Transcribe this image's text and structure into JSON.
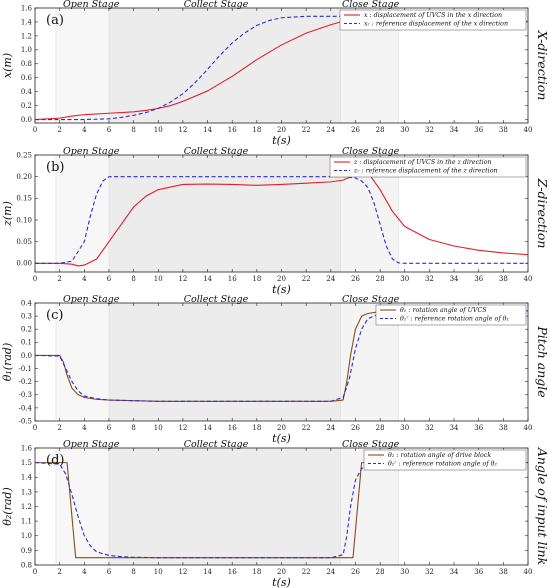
{
  "chart_data": [
    {
      "type": "line",
      "panel_label": "(a)",
      "side_label": "X-direction",
      "stages": [
        "Open Stage",
        "Collect Stage",
        "Close Stage"
      ],
      "xlabel": "t(s)",
      "ylabel": "x(m)",
      "xlim": [
        0,
        40
      ],
      "ylim": [
        -0.05,
        1.6
      ],
      "xticks": [
        "0",
        "2",
        "4",
        "6",
        "8",
        "10",
        "12",
        "14",
        "16",
        "18",
        "20",
        "22",
        "24",
        "26",
        "28",
        "30",
        "32",
        "34",
        "36",
        "38",
        "40"
      ],
      "yticks": [
        "0.0",
        "0.2",
        "0.4",
        "0.6",
        "0.8",
        "1.0",
        "1.2",
        "1.4",
        "1.6"
      ],
      "legend_position": "top-right",
      "series": [
        {
          "name": "x : displacement of UVCS in the x direction",
          "color": "#e0202a",
          "dash": "solid",
          "x": [
            0,
            2,
            3,
            4,
            6,
            8,
            9,
            10,
            11,
            12,
            14,
            16,
            18,
            20,
            22,
            24,
            25,
            25.5,
            26,
            27,
            28,
            30,
            32,
            34,
            36,
            38,
            40
          ],
          "y": [
            0,
            0.02,
            0.05,
            0.07,
            0.09,
            0.11,
            0.13,
            0.16,
            0.2,
            0.26,
            0.41,
            0.62,
            0.86,
            1.07,
            1.24,
            1.36,
            1.41,
            1.44,
            1.43,
            1.42,
            1.4,
            1.39,
            1.4,
            1.41,
            1.41,
            1.41,
            1.41
          ]
        },
        {
          "name": "xᵣ : reference displacement of the x direction",
          "color": "#2b2bd6",
          "dash": "dashed",
          "x": [
            0,
            2,
            4,
            6,
            7,
            8,
            9,
            10,
            11,
            12,
            13,
            14,
            15,
            16,
            17,
            18,
            19,
            20,
            22,
            24,
            26,
            30,
            34,
            40
          ],
          "y": [
            0,
            0,
            0,
            0.01,
            0.03,
            0.06,
            0.1,
            0.16,
            0.25,
            0.37,
            0.53,
            0.72,
            0.92,
            1.1,
            1.24,
            1.35,
            1.42,
            1.46,
            1.48,
            1.48,
            1.48,
            1.48,
            1.48,
            1.48
          ]
        }
      ]
    },
    {
      "type": "line",
      "panel_label": "(b)",
      "side_label": "Z-direction",
      "stages": [
        "Open Stage",
        "Collect Stage",
        "Close Stage"
      ],
      "xlabel": "t(s)",
      "ylabel": "z(m)",
      "xlim": [
        0,
        40
      ],
      "ylim": [
        -0.02,
        0.25
      ],
      "xticks": [
        "0",
        "2",
        "4",
        "6",
        "8",
        "10",
        "12",
        "14",
        "16",
        "18",
        "20",
        "22",
        "24",
        "26",
        "28",
        "30",
        "32",
        "34",
        "36",
        "38",
        "40"
      ],
      "yticks": [
        "0.00",
        "0.05",
        "0.10",
        "0.15",
        "0.20",
        "0.25"
      ],
      "legend_position": "top-right",
      "series": [
        {
          "name": "z : displacement of UVCS in the z direction",
          "color": "#e0202a",
          "dash": "solid",
          "x": [
            0,
            2,
            3,
            3.5,
            4,
            5,
            6,
            7,
            8,
            9,
            10,
            12,
            14,
            16,
            18,
            20,
            22,
            24,
            25,
            26,
            26.5,
            27,
            28,
            29,
            30,
            32,
            34,
            36,
            38,
            40
          ],
          "y": [
            0,
            0,
            -0.002,
            -0.006,
            -0.004,
            0.01,
            0.05,
            0.09,
            0.13,
            0.155,
            0.17,
            0.182,
            0.183,
            0.182,
            0.18,
            0.182,
            0.185,
            0.188,
            0.192,
            0.205,
            0.212,
            0.21,
            0.17,
            0.12,
            0.085,
            0.055,
            0.04,
            0.03,
            0.024,
            0.02
          ]
        },
        {
          "name": "zᵣ : reference displacement of the z direction",
          "color": "#2b2bd6",
          "dash": "dashed",
          "x": [
            0,
            2,
            3,
            4,
            4.5,
            5,
            5.5,
            6,
            7,
            8,
            10,
            14,
            18,
            22,
            24,
            25,
            26,
            26.5,
            27,
            27.5,
            28,
            28.5,
            29,
            29.5,
            30,
            32,
            36,
            40
          ],
          "y": [
            0,
            0,
            0.005,
            0.05,
            0.11,
            0.16,
            0.19,
            0.2,
            0.2,
            0.2,
            0.2,
            0.2,
            0.2,
            0.2,
            0.2,
            0.2,
            0.197,
            0.19,
            0.175,
            0.14,
            0.09,
            0.04,
            0.01,
            0.001,
            0,
            0,
            0,
            0
          ]
        }
      ]
    },
    {
      "type": "line",
      "panel_label": "(c)",
      "side_label": "Pitch angle",
      "stages": [
        "Open Stage",
        "Collect Stage",
        "Close Stage"
      ],
      "xlabel": "t(s)",
      "ylabel": "θ₁(rad)",
      "xlim": [
        0,
        40
      ],
      "ylim": [
        -0.5,
        0.4
      ],
      "xticks": [
        "0",
        "2",
        "4",
        "6",
        "8",
        "10",
        "12",
        "14",
        "16",
        "18",
        "20",
        "22",
        "24",
        "26",
        "28",
        "30",
        "32",
        "34",
        "36",
        "38",
        "40"
      ],
      "yticks": [
        "-0.5",
        "-0.4",
        "-0.3",
        "-0.2",
        "-0.1",
        "0.0",
        "0.1",
        "0.2",
        "0.3",
        "0.4"
      ],
      "legend_position": "top-right",
      "series": [
        {
          "name": "θ₁ : rotation angle of UVCS",
          "color": "#8b4a1c",
          "dash": "solid",
          "x": [
            0,
            2,
            2.3,
            2.6,
            3,
            3.5,
            4,
            5,
            6,
            8,
            10,
            15,
            20,
            24,
            25,
            25.3,
            25.6,
            26,
            26.5,
            27,
            28,
            30,
            34,
            40
          ],
          "y": [
            0,
            0,
            -0.05,
            -0.15,
            -0.25,
            -0.3,
            -0.32,
            -0.335,
            -0.34,
            -0.345,
            -0.35,
            -0.35,
            -0.35,
            -0.35,
            -0.34,
            -0.2,
            0,
            0.2,
            0.3,
            0.32,
            0.335,
            0.34,
            0.34,
            0.34
          ]
        },
        {
          "name": "θ₁ʳ : reference rotation angle of θ₁",
          "color": "#2b2bd6",
          "dash": "dashed",
          "x": [
            0,
            2,
            2.5,
            3,
            3.5,
            4,
            5,
            6,
            8,
            10,
            15,
            20,
            24,
            25,
            25.5,
            26,
            26.5,
            27,
            28,
            30,
            34,
            40
          ],
          "y": [
            0,
            -0.005,
            -0.1,
            -0.2,
            -0.27,
            -0.31,
            -0.33,
            -0.34,
            -0.345,
            -0.35,
            -0.35,
            -0.35,
            -0.35,
            -0.32,
            -0.18,
            0.05,
            0.2,
            0.28,
            0.32,
            0.335,
            0.34,
            0.34
          ]
        }
      ]
    },
    {
      "type": "line",
      "panel_label": "(d)",
      "side_label": "Angle of input link",
      "stages": [
        "Open Stage",
        "Collect Stage",
        "Close Stage"
      ],
      "xlabel": "t(s)",
      "ylabel": "θ₂(rad)",
      "xlim": [
        0,
        40
      ],
      "ylim": [
        0.8,
        1.6
      ],
      "xticks": [
        "0",
        "2",
        "4",
        "6",
        "8",
        "10",
        "12",
        "14",
        "16",
        "18",
        "20",
        "22",
        "24",
        "26",
        "28",
        "30",
        "32",
        "34",
        "36",
        "38",
        "40"
      ],
      "yticks": [
        "0.8",
        "0.9",
        "1.0",
        "1.1",
        "1.2",
        "1.3",
        "1.4",
        "1.5",
        "1.6"
      ],
      "legend_position": "top-right",
      "series": [
        {
          "name": "θ₂ : rotation angle of drive block",
          "color": "#8b4a1c",
          "dash": "solid",
          "x": [
            0,
            2.6,
            3.3,
            3.4,
            6,
            10,
            15,
            20,
            25,
            25.8,
            26.5,
            26.6,
            30,
            35,
            40
          ],
          "y": [
            1.5,
            1.5,
            0.85,
            0.85,
            0.85,
            0.85,
            0.85,
            0.85,
            0.85,
            0.85,
            1.5,
            1.5,
            1.5,
            1.5,
            1.5
          ]
        },
        {
          "name": "θ₂ʳ : reference rotation angle of θ₂",
          "color": "#2b2bd6",
          "dash": "dashed",
          "x": [
            0,
            2,
            2.5,
            3,
            3.5,
            4,
            4.5,
            5,
            6,
            7,
            8,
            10,
            15,
            20,
            24,
            25,
            25.3,
            25.6,
            26,
            26.5,
            27,
            28,
            30,
            35,
            40
          ],
          "y": [
            1.5,
            1.49,
            1.42,
            1.28,
            1.13,
            1.0,
            0.93,
            0.89,
            0.865,
            0.857,
            0.853,
            0.85,
            0.85,
            0.85,
            0.85,
            0.87,
            1.0,
            1.2,
            1.38,
            1.46,
            1.48,
            1.49,
            1.5,
            1.5,
            1.5
          ]
        }
      ]
    }
  ]
}
